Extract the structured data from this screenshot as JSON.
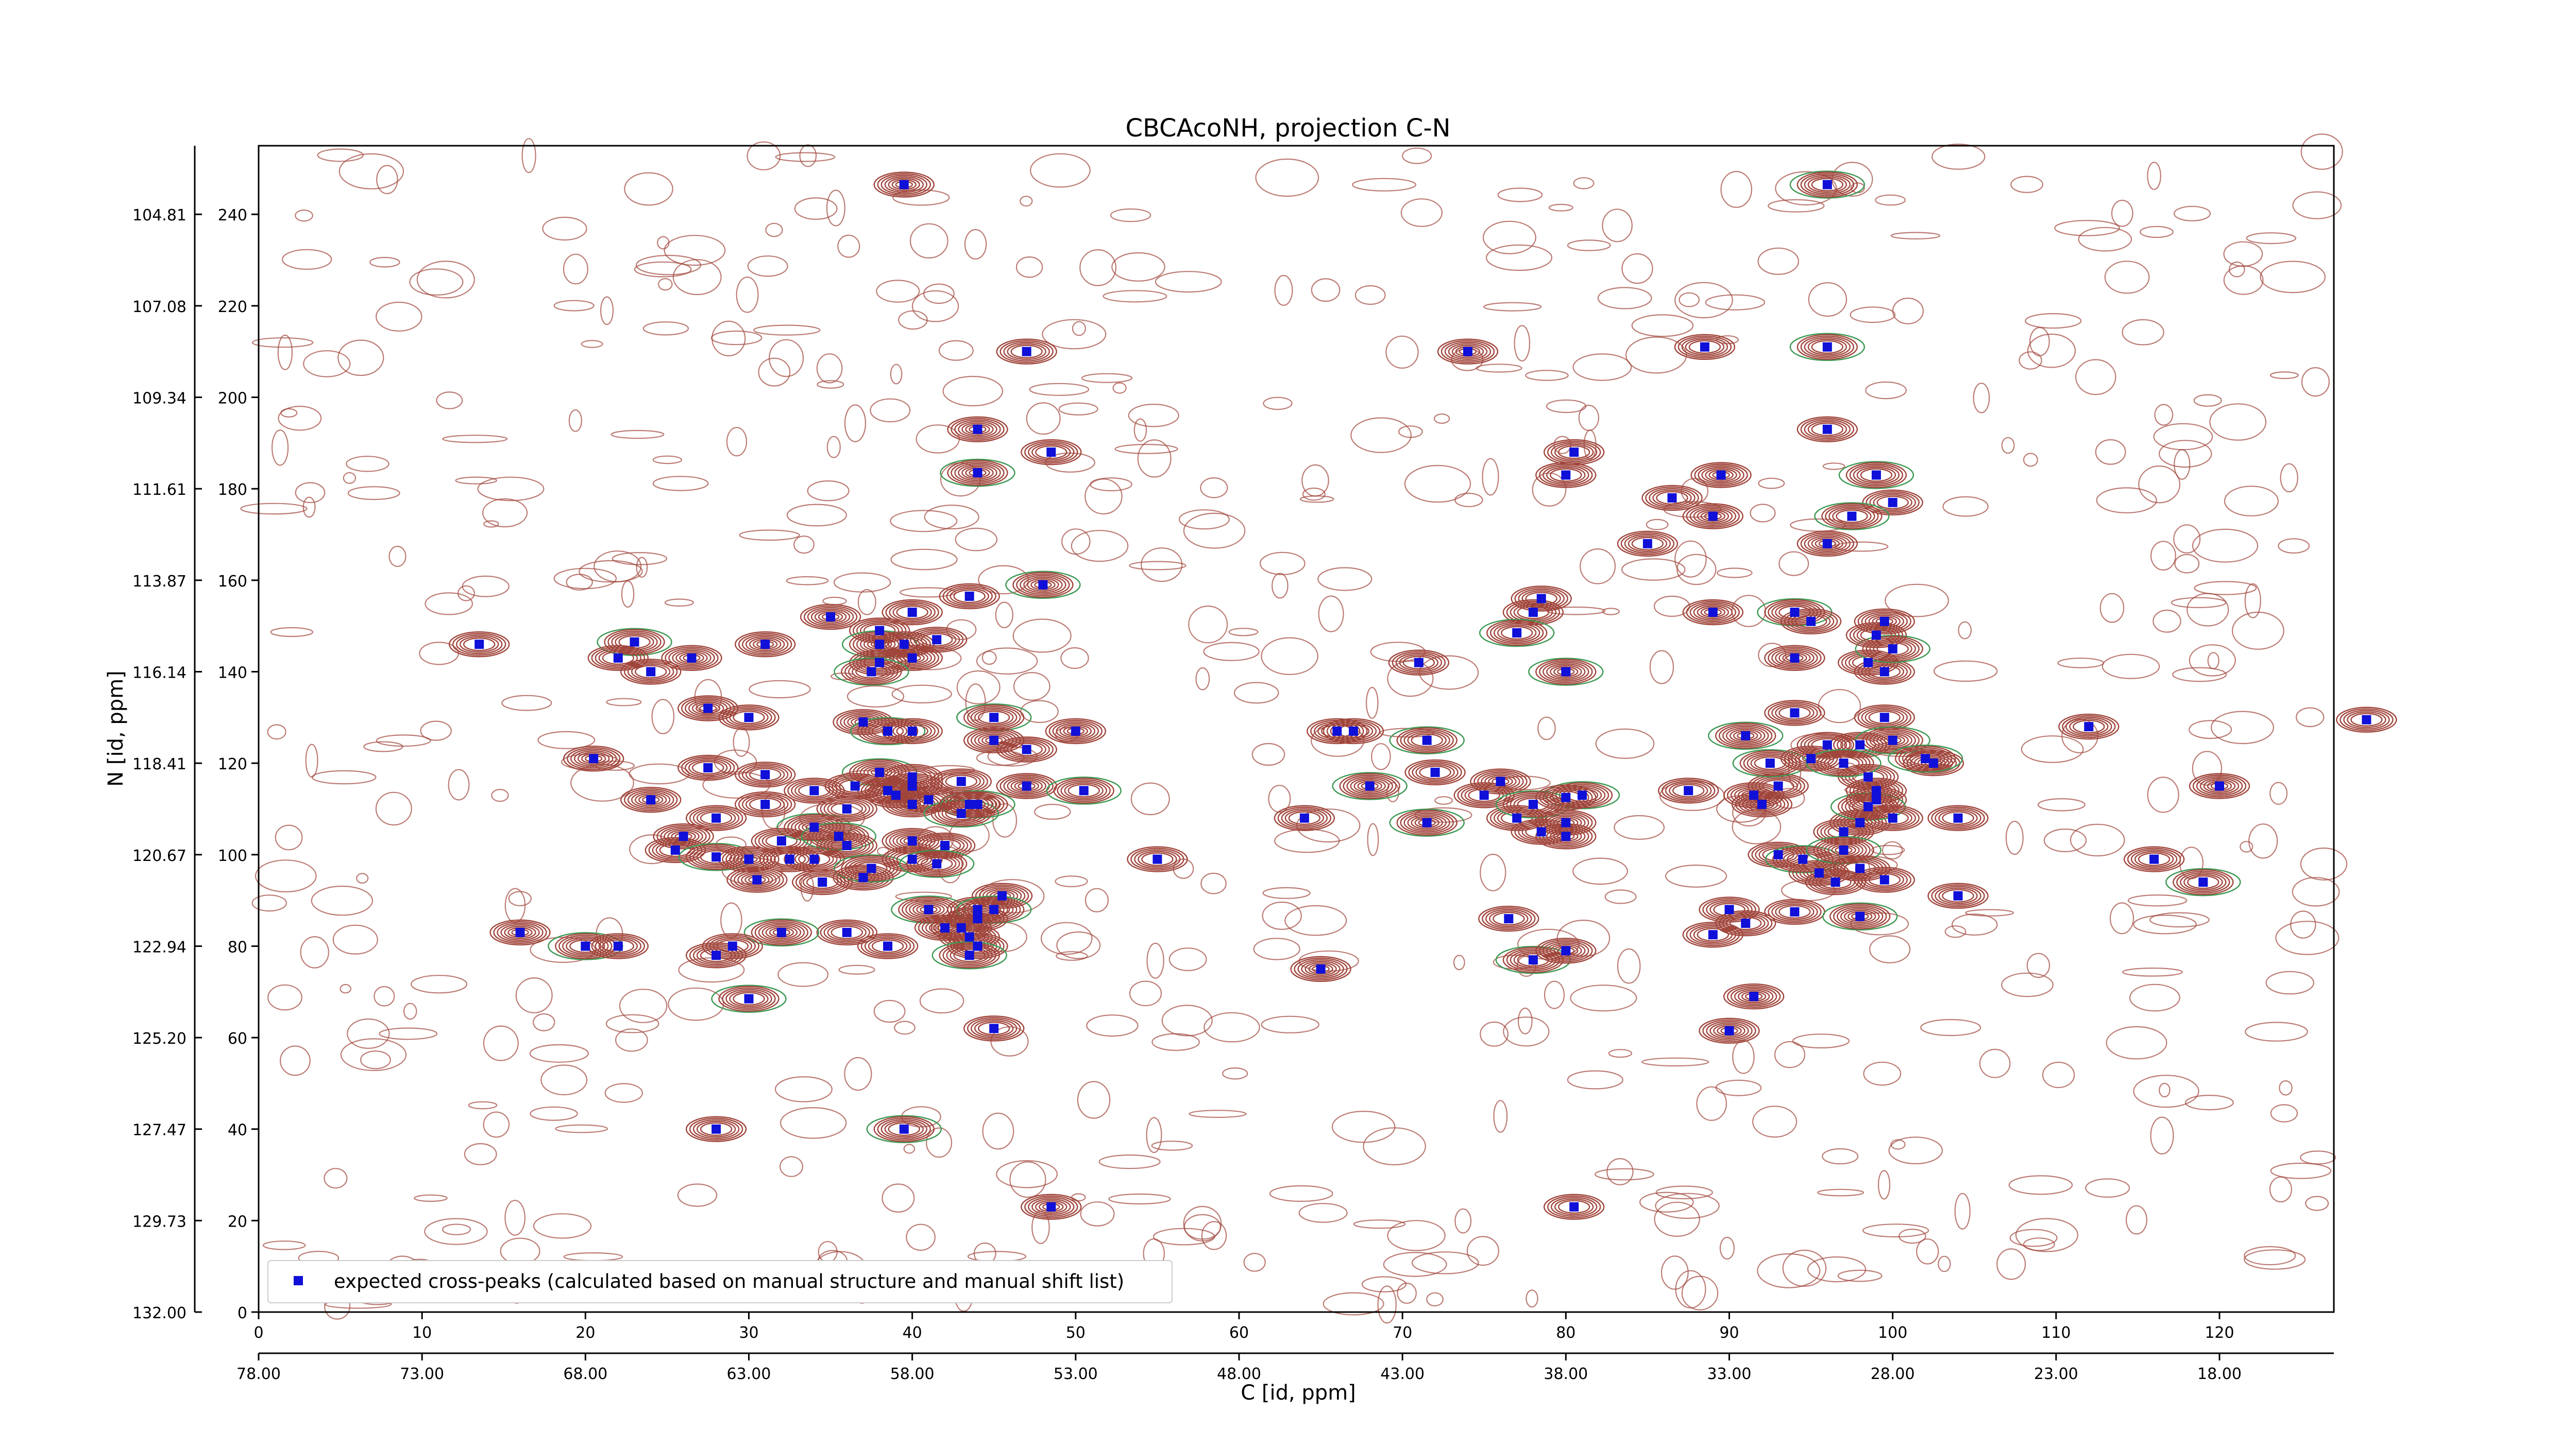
{
  "chart_data": {
    "type": "scatter",
    "title": "CBCAcoNH, projection C-N",
    "xlabel": "[id, ppm]",
    "xlabel_prefix": "C",
    "ylabel": "[id, ppm]",
    "ylabel_prefix": "N",
    "xlim": [
      0,
      127
    ],
    "ylim": [
      0,
      255
    ],
    "x_ticks": [
      0,
      10,
      20,
      30,
      40,
      50,
      60,
      70,
      80,
      90,
      100,
      110,
      120
    ],
    "y_ticks": [
      0,
      20,
      40,
      60,
      80,
      100,
      120,
      140,
      160,
      180,
      200,
      220,
      240
    ],
    "y_ppm_labels": [
      "132.00",
      "129.73",
      "127.47",
      "125.20",
      "122.94",
      "120.67",
      "118.41",
      "116.14",
      "113.87",
      "111.61",
      "109.34",
      "107.08",
      "104.81"
    ],
    "x_ppm_labels": [
      "78.00",
      "73.00",
      "68.00",
      "63.00",
      "58.00",
      "53.00",
      "48.00",
      "43.00",
      "38.00",
      "33.00",
      "28.00",
      "23.00",
      "18.00"
    ],
    "legend": {
      "label": "expected cross-peaks (calculated based on manual structure and manual shift list)",
      "placement": "lower-left"
    },
    "grid": false,
    "colors": {
      "positive_contour": "#a0453b",
      "negative_contour": "#3f9a55",
      "marker": "#1010d8",
      "axis": "#000000"
    },
    "series": [
      {
        "name": "expected cross-peaks (calculated based on manual structure and manual shift list)",
        "points": [
          [
            39.5,
            246.5
          ],
          [
            96,
            246.5
          ],
          [
            47,
            210
          ],
          [
            74,
            210
          ],
          [
            88.5,
            211
          ],
          [
            96,
            211
          ],
          [
            44,
            193
          ],
          [
            96,
            193
          ],
          [
            48.5,
            188
          ],
          [
            44,
            183.5
          ],
          [
            80.5,
            188
          ],
          [
            80,
            183
          ],
          [
            89.5,
            183
          ],
          [
            99,
            183
          ],
          [
            86.5,
            178
          ],
          [
            89,
            174
          ],
          [
            100,
            177
          ],
          [
            97.5,
            174
          ],
          [
            96,
            168
          ],
          [
            85,
            168
          ],
          [
            43.5,
            156.5
          ],
          [
            48,
            159
          ],
          [
            78.5,
            156
          ],
          [
            78,
            153
          ],
          [
            89,
            153
          ],
          [
            94,
            153
          ],
          [
            95,
            151
          ],
          [
            99.5,
            151
          ],
          [
            13.5,
            146
          ],
          [
            23,
            146.5
          ],
          [
            35,
            152
          ],
          [
            38,
            149
          ],
          [
            40,
            153
          ],
          [
            38,
            146
          ],
          [
            39.5,
            146
          ],
          [
            41.5,
            147
          ],
          [
            31,
            146
          ],
          [
            77,
            148.5
          ],
          [
            22,
            143
          ],
          [
            40,
            143
          ],
          [
            38,
            142
          ],
          [
            37.5,
            140
          ],
          [
            26.5,
            143
          ],
          [
            24,
            140
          ],
          [
            71,
            142
          ],
          [
            80,
            140
          ],
          [
            98.5,
            142
          ],
          [
            99.5,
            140
          ],
          [
            94,
            143
          ],
          [
            100,
            145
          ],
          [
            99,
            148
          ],
          [
            27.5,
            132
          ],
          [
            30,
            130
          ],
          [
            45,
            130
          ],
          [
            50,
            127
          ],
          [
            66,
            127
          ],
          [
            67,
            127
          ],
          [
            91,
            126
          ],
          [
            94,
            131
          ],
          [
            99.5,
            130
          ],
          [
            37,
            129
          ],
          [
            38.5,
            127
          ],
          [
            40,
            127
          ],
          [
            45,
            125
          ],
          [
            47,
            123
          ],
          [
            71.5,
            125
          ],
          [
            20.5,
            121
          ],
          [
            27.5,
            119
          ],
          [
            31,
            117.5
          ],
          [
            38,
            118
          ],
          [
            40,
            117
          ],
          [
            43,
            116
          ],
          [
            47,
            115
          ],
          [
            50.5,
            114
          ],
          [
            36.5,
            115
          ],
          [
            39,
            113
          ],
          [
            41,
            112
          ],
          [
            44,
            111
          ],
          [
            40,
            115
          ],
          [
            34,
            114
          ],
          [
            64,
            108
          ],
          [
            68,
            115
          ],
          [
            72,
            118
          ],
          [
            75,
            113
          ],
          [
            76,
            116
          ],
          [
            81,
            113
          ],
          [
            87.5,
            114
          ],
          [
            91.5,
            113
          ],
          [
            93,
            115
          ],
          [
            92.5,
            120
          ],
          [
            95,
            121
          ],
          [
            96,
            124
          ],
          [
            98,
            124
          ],
          [
            100,
            125
          ],
          [
            98.5,
            117
          ],
          [
            99,
            112
          ],
          [
            102.5,
            120
          ],
          [
            102,
            121
          ],
          [
            104,
            108
          ],
          [
            92,
            111
          ],
          [
            112,
            128
          ],
          [
            97,
            120
          ],
          [
            24,
            112
          ],
          [
            28,
            108
          ],
          [
            31,
            111
          ],
          [
            34,
            106
          ],
          [
            36,
            110
          ],
          [
            38.5,
            114
          ],
          [
            40,
            111
          ],
          [
            43,
            109
          ],
          [
            43.5,
            111
          ],
          [
            26,
            104
          ],
          [
            25.5,
            101
          ],
          [
            28,
            99.5
          ],
          [
            30,
            99
          ],
          [
            32,
            103
          ],
          [
            34,
            99
          ],
          [
            35.5,
            104
          ],
          [
            36,
            102
          ],
          [
            32.5,
            99
          ],
          [
            37,
            95
          ],
          [
            37.5,
            97
          ],
          [
            40,
            99
          ],
          [
            40,
            103
          ],
          [
            42,
            102
          ],
          [
            41.5,
            98
          ],
          [
            30.5,
            94.5
          ],
          [
            34.5,
            94
          ],
          [
            55,
            99
          ],
          [
            71.5,
            107
          ],
          [
            77,
            108
          ],
          [
            78.5,
            105
          ],
          [
            80,
            104
          ],
          [
            78,
            111
          ],
          [
            80,
            112.5
          ],
          [
            80,
            107
          ],
          [
            93,
            100
          ],
          [
            94.5,
            99
          ],
          [
            95.5,
            96
          ],
          [
            96.5,
            94
          ],
          [
            97,
            105
          ],
          [
            97,
            101
          ],
          [
            98,
            97
          ],
          [
            99.5,
            94.5
          ],
          [
            98,
            107
          ],
          [
            98.5,
            110.5
          ],
          [
            100,
            108
          ],
          [
            99,
            114
          ],
          [
            116,
            99
          ],
          [
            119,
            94
          ],
          [
            120,
            115
          ],
          [
            129,
            129.5
          ],
          [
            104,
            91
          ],
          [
            41,
            88
          ],
          [
            43.5,
            82
          ],
          [
            44,
            88
          ],
          [
            45.5,
            91
          ],
          [
            45,
            88
          ],
          [
            43,
            84
          ],
          [
            44,
            86
          ],
          [
            44,
            80
          ],
          [
            43.5,
            78
          ],
          [
            42,
            84
          ],
          [
            38.5,
            80
          ],
          [
            36,
            83
          ],
          [
            32,
            83
          ],
          [
            29,
            80
          ],
          [
            28,
            78
          ],
          [
            16,
            83
          ],
          [
            20,
            80
          ],
          [
            22,
            80
          ],
          [
            65,
            75
          ],
          [
            76.5,
            86
          ],
          [
            78,
            77
          ],
          [
            80,
            79
          ],
          [
            90,
            88
          ],
          [
            94,
            87.5
          ],
          [
            98,
            86.5
          ],
          [
            89,
            82.5
          ],
          [
            91,
            85
          ],
          [
            91.5,
            69
          ],
          [
            30,
            68.5
          ],
          [
            45,
            62
          ],
          [
            90,
            61.5
          ],
          [
            28,
            40
          ],
          [
            39.5,
            40
          ],
          [
            48.5,
            23
          ],
          [
            80.5,
            23
          ]
        ]
      }
    ]
  }
}
